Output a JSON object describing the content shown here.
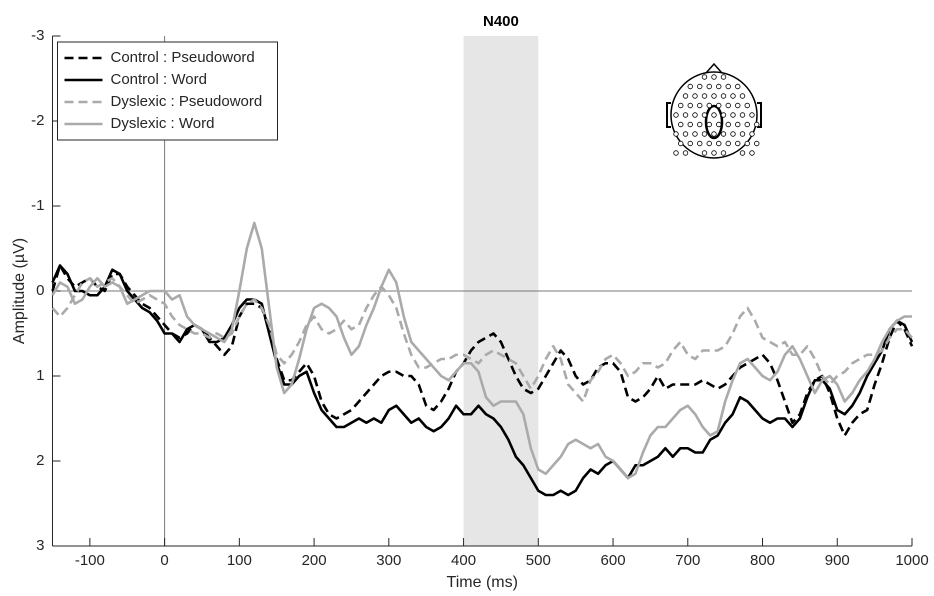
{
  "chart_data": {
    "type": "line",
    "xlabel": "Time (ms)",
    "ylabel": "Amplitude (µV)",
    "xlim": [
      -150,
      1000
    ],
    "ylim": [
      3,
      -3
    ],
    "xticks": [
      -100,
      0,
      100,
      200,
      300,
      400,
      500,
      600,
      700,
      800,
      900,
      1000
    ],
    "yticks": [
      -3,
      -2,
      -1,
      0,
      1,
      2,
      3
    ],
    "shaded_region": {
      "x": [
        400,
        500
      ],
      "label": "N400",
      "color": "#e6e6e6"
    },
    "reference_lines": {
      "x": 0,
      "y": 0
    },
    "legend": "upper left",
    "x": [
      -150,
      -140,
      -130,
      -120,
      -110,
      -100,
      -90,
      -80,
      -70,
      -60,
      -50,
      -40,
      -30,
      -20,
      -10,
      0,
      10,
      20,
      30,
      40,
      50,
      60,
      70,
      80,
      90,
      100,
      110,
      120,
      130,
      140,
      150,
      160,
      170,
      180,
      190,
      200,
      210,
      220,
      230,
      240,
      250,
      260,
      270,
      280,
      290,
      300,
      310,
      320,
      330,
      340,
      350,
      360,
      370,
      380,
      390,
      400,
      410,
      420,
      430,
      440,
      450,
      460,
      470,
      480,
      490,
      500,
      510,
      520,
      530,
      540,
      550,
      560,
      570,
      580,
      590,
      600,
      610,
      620,
      630,
      640,
      650,
      660,
      670,
      680,
      690,
      700,
      710,
      720,
      730,
      740,
      750,
      760,
      770,
      780,
      790,
      800,
      810,
      820,
      830,
      840,
      850,
      860,
      870,
      880,
      890,
      900,
      910,
      920,
      930,
      940,
      950,
      960,
      970,
      980,
      990,
      1000
    ],
    "series": [
      {
        "name": "Control : Pseudoword",
        "color": "#000000",
        "dashed": true,
        "values": [
          0.0,
          -0.3,
          -0.15,
          -0.05,
          -0.1,
          -0.15,
          -0.05,
          0.0,
          -0.2,
          -0.2,
          -0.05,
          0.05,
          0.15,
          0.2,
          0.3,
          0.4,
          0.5,
          0.55,
          0.5,
          0.4,
          0.45,
          0.55,
          0.65,
          0.75,
          0.65,
          0.3,
          0.15,
          0.15,
          0.2,
          0.45,
          0.8,
          1.05,
          1.05,
          0.95,
          0.85,
          1.0,
          1.3,
          1.45,
          1.5,
          1.45,
          1.4,
          1.3,
          1.2,
          1.1,
          1.0,
          0.95,
          0.95,
          1.0,
          1.0,
          1.1,
          1.35,
          1.4,
          1.3,
          1.15,
          0.95,
          0.85,
          0.7,
          0.6,
          0.55,
          0.5,
          0.6,
          0.8,
          1.0,
          1.15,
          1.2,
          1.15,
          1.0,
          0.85,
          0.7,
          0.8,
          1.0,
          1.1,
          1.05,
          0.9,
          0.85,
          0.85,
          0.95,
          1.25,
          1.3,
          1.25,
          1.15,
          1.0,
          1.15,
          1.1,
          1.1,
          1.1,
          1.1,
          1.05,
          1.1,
          1.15,
          1.1,
          1.0,
          0.9,
          0.85,
          0.8,
          0.75,
          0.85,
          1.05,
          1.3,
          1.55,
          1.45,
          1.2,
          1.05,
          1.0,
          1.2,
          1.5,
          1.7,
          1.55,
          1.45,
          1.4,
          1.1,
          0.85,
          0.55,
          0.35,
          0.45,
          0.65
        ]
      },
      {
        "name": "Control : Word",
        "color": "#000000",
        "dashed": false,
        "values": [
          -0.1,
          -0.3,
          -0.2,
          0.0,
          0.0,
          0.05,
          0.05,
          -0.05,
          -0.25,
          -0.2,
          0.0,
          0.1,
          0.2,
          0.25,
          0.35,
          0.5,
          0.5,
          0.6,
          0.45,
          0.4,
          0.45,
          0.6,
          0.6,
          0.55,
          0.4,
          0.2,
          0.1,
          0.1,
          0.15,
          0.5,
          0.85,
          1.1,
          1.1,
          1.0,
          0.95,
          1.2,
          1.4,
          1.5,
          1.6,
          1.6,
          1.55,
          1.5,
          1.55,
          1.5,
          1.55,
          1.4,
          1.35,
          1.45,
          1.55,
          1.5,
          1.6,
          1.65,
          1.6,
          1.5,
          1.35,
          1.45,
          1.45,
          1.35,
          1.45,
          1.5,
          1.6,
          1.75,
          1.95,
          2.05,
          2.2,
          2.35,
          2.4,
          2.4,
          2.35,
          2.4,
          2.35,
          2.2,
          2.1,
          2.15,
          2.05,
          2.0,
          2.1,
          2.2,
          2.05,
          2.05,
          2.0,
          1.95,
          1.85,
          1.95,
          1.85,
          1.85,
          1.9,
          1.9,
          1.75,
          1.7,
          1.55,
          1.45,
          1.25,
          1.3,
          1.4,
          1.5,
          1.55,
          1.5,
          1.5,
          1.6,
          1.5,
          1.25,
          1.05,
          1.05,
          1.15,
          1.4,
          1.45,
          1.35,
          1.2,
          1.0,
          0.85,
          0.7,
          0.45,
          0.35,
          0.4,
          0.6
        ]
      },
      {
        "name": "Dyslexic : Pseudoword",
        "color": "#aaaaaa",
        "dashed": true,
        "values": [
          0.2,
          0.3,
          0.2,
          0.05,
          -0.1,
          -0.15,
          -0.05,
          -0.1,
          -0.15,
          -0.05,
          0.05,
          0.15,
          0.1,
          0.05,
          0.1,
          0.15,
          0.3,
          0.4,
          0.45,
          0.5,
          0.5,
          0.55,
          0.5,
          0.55,
          0.5,
          0.3,
          0.15,
          0.1,
          0.2,
          0.4,
          0.75,
          0.85,
          0.75,
          0.6,
          0.4,
          0.3,
          0.45,
          0.5,
          0.45,
          0.35,
          0.45,
          0.4,
          0.2,
          0.05,
          -0.05,
          0.05,
          0.2,
          0.5,
          0.75,
          0.9,
          0.9,
          0.85,
          0.8,
          0.8,
          0.75,
          0.75,
          0.8,
          0.85,
          0.75,
          0.7,
          0.75,
          0.8,
          0.85,
          1.0,
          1.15,
          1.0,
          0.8,
          0.65,
          0.8,
          1.1,
          1.2,
          1.3,
          1.05,
          0.95,
          0.8,
          0.75,
          0.85,
          1.0,
          0.95,
          0.85,
          0.85,
          0.9,
          0.85,
          0.7,
          0.6,
          0.75,
          0.8,
          0.7,
          0.7,
          0.7,
          0.65,
          0.5,
          0.3,
          0.2,
          0.35,
          0.55,
          0.6,
          0.65,
          0.6,
          0.75,
          0.75,
          0.65,
          0.8,
          1.0,
          1.1,
          1.0,
          0.95,
          0.85,
          0.8,
          0.75,
          0.75,
          0.7,
          0.55,
          0.45,
          0.45,
          0.55
        ]
      },
      {
        "name": "Dyslexic : Word",
        "color": "#aaaaaa",
        "dashed": false,
        "values": [
          0.05,
          -0.1,
          -0.05,
          0.15,
          0.1,
          -0.05,
          -0.15,
          -0.05,
          -0.1,
          -0.05,
          0.15,
          0.1,
          0.05,
          0.0,
          0.0,
          0.0,
          0.1,
          0.05,
          0.3,
          0.4,
          0.45,
          0.5,
          0.55,
          0.6,
          0.45,
          0.0,
          -0.5,
          -0.8,
          -0.5,
          0.2,
          0.9,
          1.2,
          1.1,
          0.8,
          0.45,
          0.2,
          0.15,
          0.2,
          0.3,
          0.55,
          0.75,
          0.65,
          0.4,
          0.2,
          -0.05,
          -0.25,
          -0.1,
          0.3,
          0.6,
          0.7,
          0.8,
          0.9,
          1.0,
          1.05,
          0.95,
          0.85,
          0.85,
          0.95,
          1.25,
          1.35,
          1.3,
          1.3,
          1.3,
          1.45,
          1.85,
          2.1,
          2.15,
          2.05,
          1.95,
          1.8,
          1.75,
          1.8,
          1.85,
          1.8,
          1.95,
          2.0,
          2.1,
          2.2,
          2.15,
          1.9,
          1.7,
          1.6,
          1.6,
          1.5,
          1.4,
          1.35,
          1.45,
          1.6,
          1.7,
          1.65,
          1.3,
          1.05,
          0.85,
          0.8,
          0.9,
          1.0,
          1.05,
          0.95,
          0.75,
          0.65,
          0.8,
          1.0,
          1.2,
          1.05,
          1.0,
          1.1,
          1.3,
          1.2,
          1.05,
          0.95,
          0.8,
          0.6,
          0.45,
          0.35,
          0.3,
          0.3
        ]
      }
    ]
  }
}
